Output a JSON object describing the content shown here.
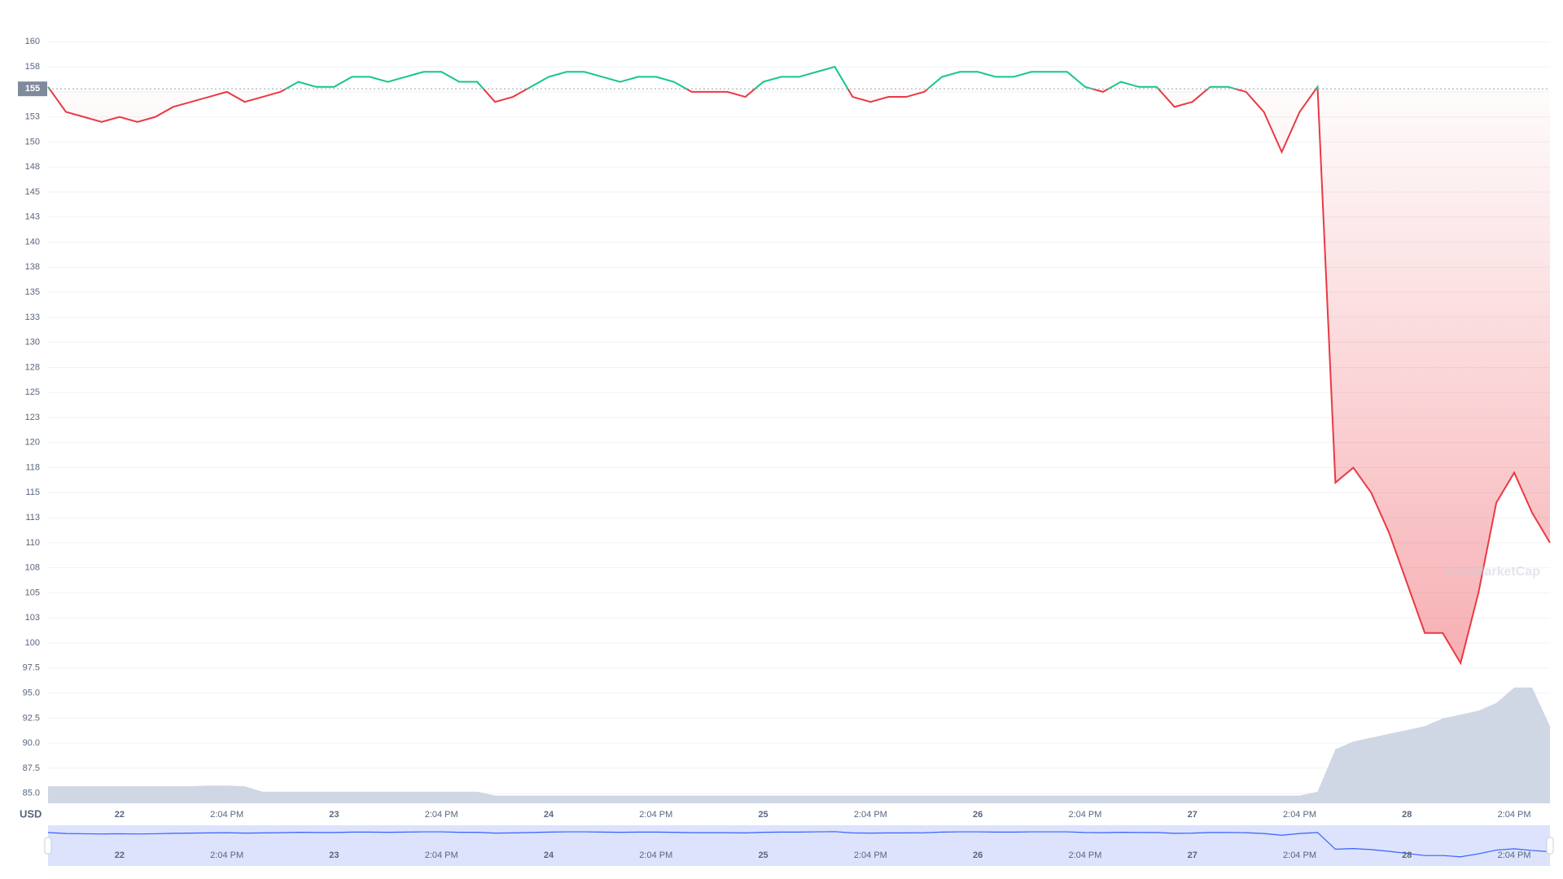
{
  "chart_data": {
    "type": "line",
    "currency_label": "USD",
    "watermark": "CoinMarketCap",
    "baseline": {
      "value": 155.3,
      "label": "155"
    },
    "categories": [
      null,
      null,
      null,
      null,
      "22",
      null,
      null,
      null,
      null,
      null,
      "2:04 PM",
      null,
      null,
      null,
      null,
      null,
      "23",
      null,
      null,
      null,
      null,
      null,
      "2:04 PM",
      null,
      null,
      null,
      null,
      null,
      "24",
      null,
      null,
      null,
      null,
      null,
      "2:04 PM",
      null,
      null,
      null,
      null,
      null,
      "25",
      null,
      null,
      null,
      null,
      null,
      "2:04 PM",
      null,
      null,
      null,
      null,
      null,
      "26",
      null,
      null,
      null,
      null,
      null,
      "2:04 PM",
      null,
      null,
      null,
      null,
      null,
      "27",
      null,
      null,
      null,
      null,
      null,
      "2:04 PM",
      null,
      null,
      null,
      null,
      null,
      "28",
      null,
      null,
      null,
      null,
      null,
      "2:04 PM",
      null,
      null
    ],
    "series": [
      {
        "up_color": "#16c784",
        "color": "#ea3943",
        "values": [
          155.5,
          153,
          152.5,
          152,
          152.5,
          152,
          152.5,
          153.5,
          154,
          154.5,
          155,
          154,
          154.5,
          155,
          156,
          155.5,
          155.5,
          156.5,
          156.5,
          156,
          156.5,
          157,
          157,
          156,
          156,
          154,
          154.5,
          155.5,
          156.5,
          157,
          157,
          156.5,
          156,
          156.5,
          156.5,
          156,
          155,
          155,
          155,
          154.5,
          156,
          156.5,
          156.5,
          157,
          157.5,
          154.5,
          154,
          154.5,
          154.5,
          155,
          156.5,
          157,
          157,
          156.5,
          156.5,
          157,
          157,
          157,
          155.5,
          155,
          156,
          155.5,
          155.5,
          153.5,
          154,
          155.5,
          155.5,
          155,
          153,
          149,
          153,
          155.5,
          116,
          117.5,
          115,
          111,
          106,
          101,
          101,
          98,
          105,
          114,
          117,
          113,
          110
        ]
      },
      {
        "axis": "y2",
        "color": "#cfd6e4",
        "values": [
          2.2,
          2.2,
          2.2,
          2.2,
          2.2,
          2.2,
          2.2,
          2.2,
          2.2,
          2.3,
          2.3,
          2.2,
          1.5,
          1.5,
          1.5,
          1.5,
          1.5,
          1.5,
          1.5,
          1.5,
          1.5,
          1.5,
          1.5,
          1.5,
          1.5,
          1,
          1,
          1,
          1,
          1,
          1,
          1,
          1,
          1,
          1,
          1,
          1,
          1,
          1,
          1,
          1,
          1,
          1,
          1,
          1,
          1,
          1,
          1,
          1,
          1,
          1,
          1,
          1,
          1,
          1,
          1,
          1,
          1,
          1,
          1,
          1,
          1,
          1,
          1,
          1,
          1,
          1,
          1,
          1,
          1,
          1,
          1.5,
          7,
          8,
          8.5,
          9,
          9.5,
          10,
          11,
          11.5,
          12,
          13,
          15,
          15,
          10
        ]
      }
    ],
    "ylim": [
      84,
      161
    ],
    "y2lim": [
      0,
      100
    ],
    "yticks": [
      {
        "value": 160,
        "label": "160"
      },
      {
        "value": 157.5,
        "label": "158"
      },
      {
        "value": 155,
        "label": "155"
      },
      {
        "value": 152.5,
        "label": "153"
      },
      {
        "value": 150,
        "label": "150"
      },
      {
        "value": 147.5,
        "label": "148"
      },
      {
        "value": 145,
        "label": "145"
      },
      {
        "value": 142.5,
        "label": "143"
      },
      {
        "value": 140,
        "label": "140"
      },
      {
        "value": 137.5,
        "label": "138"
      },
      {
        "value": 135,
        "label": "135"
      },
      {
        "value": 132.5,
        "label": "133"
      },
      {
        "value": 130,
        "label": "130"
      },
      {
        "value": 127.5,
        "label": "128"
      },
      {
        "value": 125,
        "label": "125"
      },
      {
        "value": 122.5,
        "label": "123"
      },
      {
        "value": 120,
        "label": "120"
      },
      {
        "value": 117.5,
        "label": "118"
      },
      {
        "value": 115,
        "label": "115"
      },
      {
        "value": 112.5,
        "label": "113"
      },
      {
        "value": 110,
        "label": "110"
      },
      {
        "value": 107.5,
        "label": "108"
      },
      {
        "value": 105,
        "label": "105"
      },
      {
        "value": 102.5,
        "label": "103"
      },
      {
        "value": 100,
        "label": "100"
      },
      97.5,
      {
        "value": 95,
        "label": "95.0"
      },
      92.5,
      {
        "value": 90,
        "label": "90.0"
      },
      87.5,
      {
        "value": 85,
        "label": "85.0"
      }
    ],
    "grid": true
  }
}
